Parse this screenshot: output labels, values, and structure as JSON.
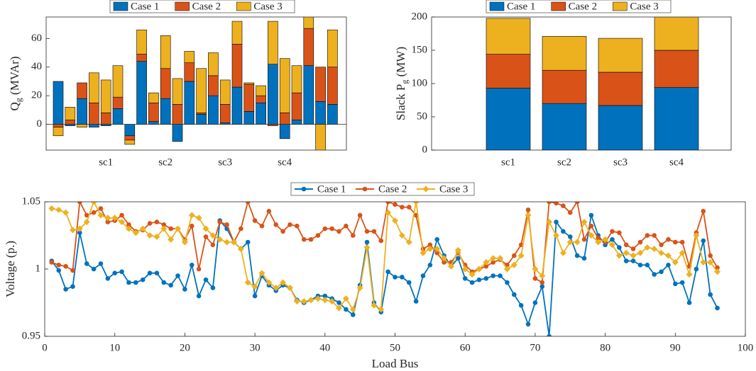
{
  "chart_data": [
    {
      "type": "bar",
      "stacked": true,
      "ylabel": "Q",
      "ylabel_subscript": "g",
      "ylabel_unit": "(MVAr)",
      "categories": [
        null,
        null,
        null,
        null,
        "sc1",
        null,
        null,
        null,
        null,
        "sc2",
        null,
        null,
        null,
        null,
        "sc3",
        null,
        null,
        null,
        null,
        "sc4",
        null,
        null,
        null,
        null
      ],
      "series": [
        {
          "name": "Case 1",
          "color": "#0072BD",
          "values": [
            30,
            -1,
            18,
            -2,
            -1,
            11,
            -8,
            44,
            2,
            18,
            -12,
            30,
            7,
            20,
            1,
            26,
            9,
            15,
            42,
            -10,
            3,
            41,
            16,
            14
          ]
        },
        {
          "name": "Case 2",
          "color": "#D95319",
          "values": [
            -2,
            3,
            11,
            15,
            8,
            8,
            -3,
            5,
            13,
            21,
            14,
            13,
            1,
            14,
            13,
            30,
            19,
            5,
            -1,
            8,
            19,
            26,
            24,
            26
          ]
        },
        {
          "name": "Case 3",
          "color": "#EDB120",
          "values": [
            -6,
            9,
            -2,
            21,
            23,
            22,
            -3,
            17,
            7,
            23,
            18,
            8,
            31,
            16,
            17,
            16,
            1,
            7,
            30,
            38,
            19,
            14,
            -20,
            26
          ]
        }
      ],
      "ylim": [
        -18,
        75
      ],
      "yticks": [
        0,
        20,
        40,
        60
      ]
    },
    {
      "type": "bar",
      "stacked": true,
      "ylabel": "Slack P",
      "ylabel_subscript": "g",
      "ylabel_unit": "(MW)",
      "categories": [
        "sc1",
        "sc2",
        "sc3",
        "sc4"
      ],
      "series": [
        {
          "name": "Case 1",
          "color": "#0072BD",
          "values": [
            93,
            70,
            67,
            94
          ]
        },
        {
          "name": "Case 2",
          "color": "#D95319",
          "values": [
            51,
            50,
            50,
            56
          ]
        },
        {
          "name": "Case 3",
          "color": "#EDB120",
          "values": [
            54,
            51,
            51,
            55
          ]
        }
      ],
      "ylim": [
        0,
        200
      ],
      "yticks": [
        0,
        50,
        100,
        150,
        200
      ]
    },
    {
      "type": "line",
      "xlabel": "Load Bus",
      "ylabel": "Voltage (p.)",
      "x": [
        1,
        2,
        3,
        4,
        5,
        6,
        7,
        8,
        9,
        10,
        11,
        12,
        13,
        14,
        15,
        16,
        17,
        18,
        19,
        20,
        21,
        22,
        23,
        24,
        25,
        26,
        27,
        28,
        29,
        30,
        31,
        32,
        33,
        34,
        35,
        36,
        37,
        38,
        39,
        40,
        41,
        42,
        43,
        44,
        45,
        46,
        47,
        48,
        49,
        50,
        51,
        52,
        53,
        54,
        55,
        56,
        57,
        58,
        59,
        60,
        61,
        62,
        63,
        64,
        65,
        66,
        67,
        68,
        69,
        70,
        71,
        72,
        73,
        74,
        75,
        76,
        77,
        78,
        79,
        80,
        81,
        82,
        83,
        84,
        85,
        86,
        87,
        88,
        89,
        90,
        91,
        92,
        93,
        94,
        95,
        96
      ],
      "series": [
        {
          "name": "Case 1",
          "color": "#0072BD",
          "marker": "circle",
          "values": [
            1.006,
            0.999,
            0.985,
            0.987,
            1.027,
            1.004,
            1.0,
            1.004,
            0.993,
            0.997,
            0.998,
            0.99,
            0.99,
            0.992,
            0.997,
            0.997,
            0.99,
            0.988,
            0.995,
            0.985,
            1.003,
            0.98,
            0.992,
            0.986,
            1.036,
            1.03,
            1.02,
            1.015,
            1.02,
            0.98,
            0.995,
            0.988,
            0.984,
            0.988,
            0.986,
            0.977,
            0.975,
            0.977,
            0.98,
            0.98,
            0.978,
            0.975,
            0.97,
            0.966,
            0.988,
            1.02,
            0.975,
            0.968,
            0.998,
            0.994,
            0.994,
            0.99,
            0.976,
            0.995,
            1.003,
            1.022,
            1.01,
            1.002,
            1.008,
            0.993,
            0.99,
            0.992,
            0.993,
            0.995,
            0.995,
            0.99,
            0.981,
            0.973,
            0.959,
            0.975,
            0.987,
            0.95,
            1.035,
            1.028,
            1.024,
            1.01,
            1.008,
            1.04,
            1.025,
            1.018,
            1.022,
            1.016,
            1.006,
            1.006,
            1.003,
            1.003,
            0.996,
            0.998,
            1.003,
            0.989,
            0.99,
            0.975,
            1.0,
            1.021,
            0.981,
            0.971
          ]
        },
        {
          "name": "Case 2",
          "color": "#D95319",
          "marker": "circle",
          "values": [
            1.005,
            1.003,
            1.002,
            0.999,
            1.05,
            1.04,
            1.042,
            1.045,
            1.035,
            1.036,
            1.04,
            1.033,
            1.028,
            1.029,
            1.034,
            1.035,
            1.033,
            1.03,
            1.03,
            1.022,
            1.032,
            1.0,
            1.024,
            1.018,
            1.035,
            1.033,
            1.02,
            1.03,
            1.05,
            1.036,
            1.032,
            1.043,
            1.033,
            1.028,
            1.033,
            1.032,
            1.022,
            1.022,
            1.025,
            1.03,
            1.03,
            1.028,
            1.032,
            1.025,
            1.04,
            1.028,
            1.028,
            1.021,
            1.05,
            1.048,
            1.046,
            1.046,
            1.04,
            1.015,
            1.018,
            1.012,
            1.005,
            1.005,
            1.012,
            1.003,
            0.998,
            1.0,
            1.002,
            1.005,
            1.007,
            1.003,
            1.01,
            1.018,
            1.044,
            0.993,
            0.99,
            1.05,
            1.049,
            1.047,
            1.042,
            1.05,
            1.022,
            1.032,
            1.023,
            1.02,
            1.028,
            1.027,
            1.018,
            1.015,
            1.02,
            1.025,
            1.025,
            1.018,
            1.022,
            1.02,
            1.02,
            1.002,
            1.027,
            1.043,
            1.01,
            1.001
          ]
        },
        {
          "name": "Case 3",
          "color": "#EDB120",
          "marker": "diamond",
          "values": [
            1.045,
            1.044,
            1.042,
            1.029,
            1.03,
            1.035,
            1.05,
            1.04,
            1.038,
            1.038,
            1.035,
            1.03,
            1.027,
            1.03,
            1.025,
            1.024,
            1.03,
            1.022,
            1.03,
            1.02,
            1.04,
            1.038,
            1.03,
            1.025,
            1.022,
            1.02,
            1.02,
            1.015,
            0.99,
            0.987,
            0.997,
            0.99,
            0.986,
            0.99,
            0.986,
            0.976,
            0.976,
            0.977,
            0.978,
            0.977,
            0.976,
            0.971,
            0.978,
            0.97,
            0.986,
            1.016,
            0.973,
            0.97,
            1.042,
            1.036,
            1.025,
            1.02,
            1.05,
            1.012,
            1.015,
            1.015,
            1.008,
            1.002,
            1.014,
            1.0,
            0.996,
            1.0,
            1.005,
            1.008,
            1.008,
            1.0,
            1.003,
            1.01,
            1.04,
            1.0,
            0.995,
            1.035,
            1.025,
            1.012,
            1.02,
            1.02,
            1.035,
            1.025,
            1.02,
            1.022,
            1.018,
            1.01,
            1.012,
            1.01,
            1.012,
            1.016,
            1.015,
            1.012,
            1.01,
            1.005,
            1.012,
            0.996,
            1.025,
            1.005,
            1.005,
            0.998
          ]
        }
      ],
      "xlim": [
        0,
        100
      ],
      "xticks": [
        0,
        10,
        20,
        30,
        40,
        50,
        60,
        70,
        80,
        90,
        100
      ],
      "ylim": [
        0.95,
        1.05
      ],
      "yticks": [
        0.95,
        1,
        1.05
      ]
    }
  ]
}
